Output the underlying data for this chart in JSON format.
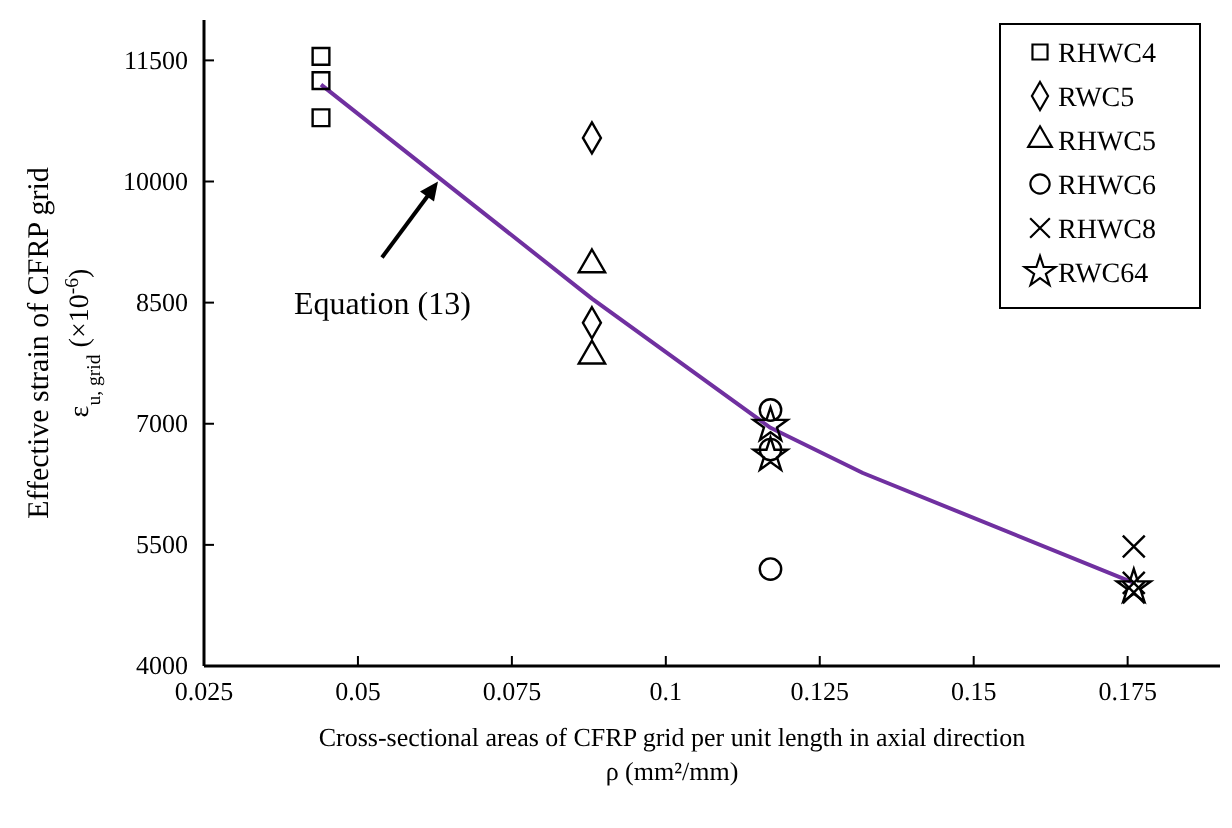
{
  "chart_data": {
    "type": "scatter",
    "xlabel": "Cross-sectional areas of CFRP grid per unit length in axial direction\nρ (mm²/mm)",
    "ylabel": "Effective strain of CFRP grid\nε$_{u, grid}$ (×10$^{-6}$)",
    "xlim": [
      0.025,
      0.19
    ],
    "xticks": [
      0.025,
      0.05,
      0.075,
      0.1,
      0.125,
      0.15,
      0.175
    ],
    "ylim": [
      4000,
      12000
    ],
    "yticks": [
      4000,
      5500,
      7000,
      8500,
      10000,
      11500
    ],
    "grid": false,
    "legend": "top right",
    "annotations": [
      {
        "text": "Equation (13)",
        "x": 0.063,
        "y": 10000
      }
    ],
    "series": [
      {
        "name": "RHWC4",
        "color": "#000000",
        "marker": "square",
        "x": [
          0.044,
          0.044,
          0.044
        ],
        "values": [
          11550,
          11250,
          10790
        ]
      },
      {
        "name": "RWC5",
        "color": "#000000",
        "marker": "diamond",
        "x": [
          0.088,
          0.088
        ],
        "values": [
          10540,
          8250
        ]
      },
      {
        "name": "RHWC5",
        "color": "#000000",
        "marker": "triangle",
        "x": [
          0.088,
          0.088
        ],
        "values": [
          8970,
          7840
        ]
      },
      {
        "name": "RHWC6",
        "color": "#000000",
        "marker": "circle",
        "x": [
          0.117,
          0.117,
          0.117
        ],
        "values": [
          7170,
          6680,
          5200
        ]
      },
      {
        "name": "RHWC8",
        "color": "#000000",
        "marker": "cross",
        "x": [
          0.176,
          0.176,
          0.176
        ],
        "values": [
          5480,
          5030,
          4910
        ]
      },
      {
        "name": "RWC64",
        "color": "#000000",
        "marker": "star",
        "x": [
          0.117,
          0.117,
          0.176
        ],
        "values": [
          6980,
          6610,
          4980
        ]
      },
      {
        "type": "line",
        "color": "#7030a0",
        "marker": "none",
        "line_style": "solid",
        "x": [
          0.044,
          0.088,
          0.117,
          0.132,
          0.176
        ],
        "values": [
          11200,
          8550,
          6950,
          6390,
          5030
        ]
      }
    ]
  }
}
